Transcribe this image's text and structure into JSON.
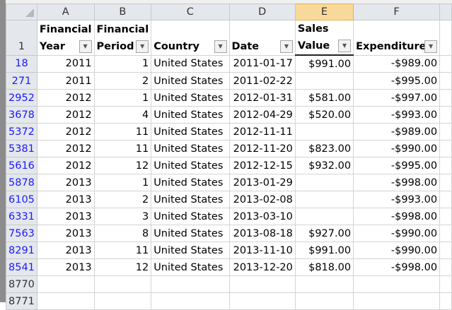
{
  "columns": [
    "A",
    "B",
    "C",
    "D",
    "E",
    "F"
  ],
  "selected_column": "E",
  "header_row": {
    "row_number": "1",
    "cells": [
      {
        "line1": "Financial",
        "line2": "Year",
        "filter": "dropdown"
      },
      {
        "line1": "Financial",
        "line2": "Period",
        "filter": "dropdown"
      },
      {
        "line1": "",
        "line2": "Country",
        "filter": "filtered"
      },
      {
        "line1": "",
        "line2": "Date",
        "filter": "dropdown"
      },
      {
        "line1": "Sales",
        "line2": "Value",
        "filter": "dropdown"
      },
      {
        "line1": "",
        "line2": "Expenditure",
        "filter": "filtered"
      }
    ]
  },
  "rows": [
    {
      "n": "18",
      "c": [
        "2011",
        "1",
        "United States",
        "2011-01-17",
        "$991.00",
        "-$989.00"
      ]
    },
    {
      "n": "271",
      "c": [
        "2011",
        "2",
        "United States",
        "2011-02-22",
        "",
        "-$995.00"
      ]
    },
    {
      "n": "2952",
      "c": [
        "2012",
        "1",
        "United States",
        "2012-01-31",
        "$581.00",
        "-$997.00"
      ]
    },
    {
      "n": "3678",
      "c": [
        "2012",
        "4",
        "United States",
        "2012-04-29",
        "$520.00",
        "-$993.00"
      ]
    },
    {
      "n": "5372",
      "c": [
        "2012",
        "11",
        "United States",
        "2012-11-11",
        "",
        "-$989.00"
      ]
    },
    {
      "n": "5381",
      "c": [
        "2012",
        "11",
        "United States",
        "2012-11-20",
        "$823.00",
        "-$990.00"
      ]
    },
    {
      "n": "5616",
      "c": [
        "2012",
        "12",
        "United States",
        "2012-12-15",
        "$932.00",
        "-$995.00"
      ]
    },
    {
      "n": "5878",
      "c": [
        "2013",
        "1",
        "United States",
        "2013-01-29",
        "",
        "-$998.00"
      ]
    },
    {
      "n": "6105",
      "c": [
        "2013",
        "2",
        "United States",
        "2013-02-08",
        "",
        "-$993.00"
      ]
    },
    {
      "n": "6331",
      "c": [
        "2013",
        "3",
        "United States",
        "2013-03-10",
        "",
        "-$998.00"
      ]
    },
    {
      "n": "7563",
      "c": [
        "2013",
        "8",
        "United States",
        "2013-08-18",
        "$927.00",
        "-$990.00"
      ]
    },
    {
      "n": "8291",
      "c": [
        "2013",
        "11",
        "United States",
        "2013-11-10",
        "$991.00",
        "-$990.00"
      ]
    },
    {
      "n": "8541",
      "c": [
        "2013",
        "12",
        "United States",
        "2013-12-20",
        "$818.00",
        "-$998.00"
      ]
    }
  ],
  "empty_rows": [
    "8770",
    "8771"
  ]
}
